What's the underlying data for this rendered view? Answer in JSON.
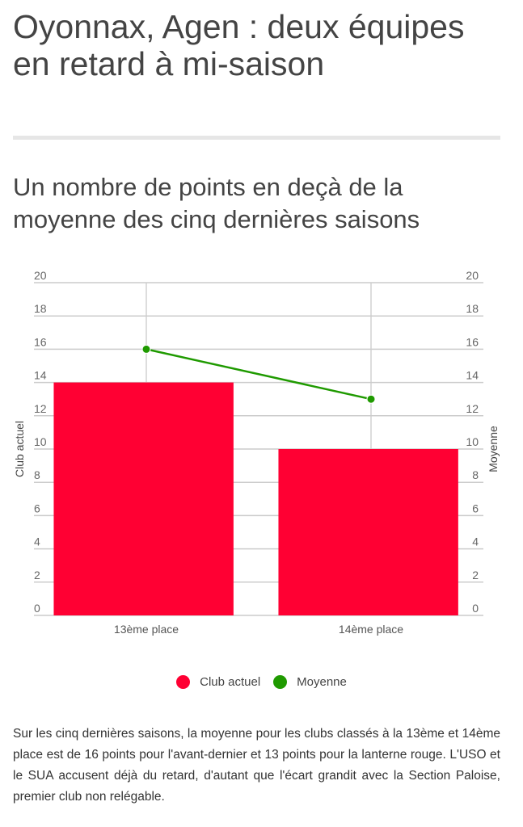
{
  "title": "Oyonnax, Agen : deux équipes en retard à mi-saison",
  "subtitle": "Un nombre de points en deçà de la moyenne des cinq dernières saisons",
  "chart_data": {
    "type": "bar",
    "categories": [
      "13ème place",
      "14ème place"
    ],
    "series": [
      {
        "name": "Club actuel",
        "kind": "bar",
        "values": [
          14,
          10
        ],
        "color": "#ff0033",
        "axis": "left"
      },
      {
        "name": "Moyenne",
        "kind": "line",
        "values": [
          16,
          13
        ],
        "color": "#1f9a00",
        "axis": "right"
      }
    ],
    "ylabel_left": "Club actuel",
    "ylabel_right": "Moyenne",
    "ylim": [
      0,
      20
    ],
    "yticks": [
      0,
      2,
      4,
      6,
      8,
      10,
      12,
      14,
      16,
      18,
      20
    ],
    "grid": true,
    "legend": "bottom"
  },
  "body": "Sur les cinq dernières saisons, la moyenne pour les clubs classés à la 13ème et 14ème place est de 16 points pour l'avant-dernier et 13 points pour la lanterne rouge. L'USO et le SUA accusent déjà du retard, d'autant que l'écart grandit avec la Section Paloise, premier club non relégable."
}
